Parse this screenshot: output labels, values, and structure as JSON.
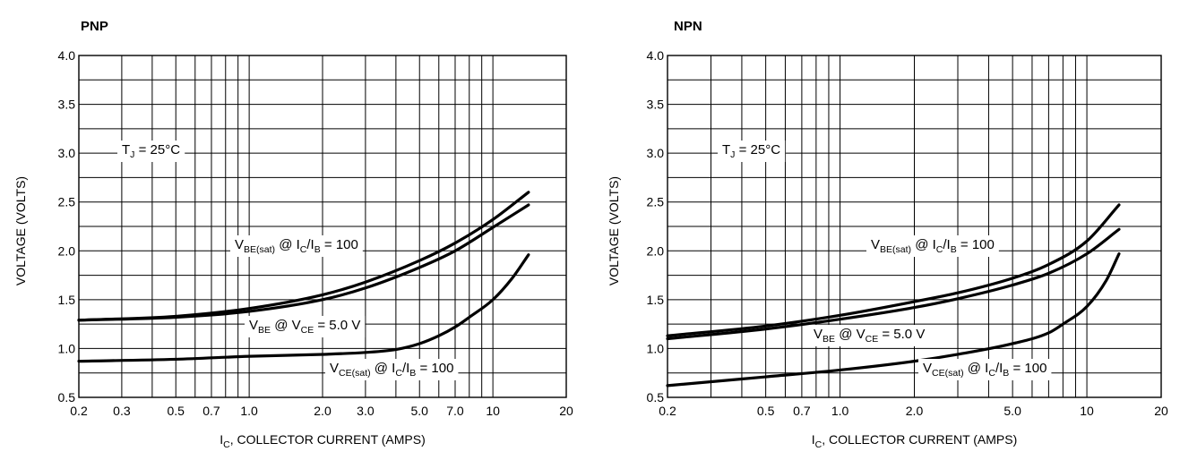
{
  "chart_data": [
    {
      "type": "line",
      "title": "PNP",
      "xlabel": "I_C, COLLECTOR CURRENT (AMPS)",
      "xlabel_parts": {
        "main": "I",
        "sub": "C",
        "rest": ", COLLECTOR CURRENT (AMPS)"
      },
      "ylabel": "VOLTAGE (VOLTS)",
      "xscale": "log",
      "xlim": [
        0.2,
        20
      ],
      "ylim": [
        0.5,
        4.0
      ],
      "grid": true,
      "x_ticks": [
        {
          "v": 0.2,
          "label": "0.2"
        },
        {
          "v": 0.3,
          "label": "0.3"
        },
        {
          "v": 0.5,
          "label": "0.5"
        },
        {
          "v": 0.7,
          "label": "0.7"
        },
        {
          "v": 1.0,
          "label": "1.0"
        },
        {
          "v": 2.0,
          "label": "2.0"
        },
        {
          "v": 3.0,
          "label": "3.0"
        },
        {
          "v": 5.0,
          "label": "5.0"
        },
        {
          "v": 7.0,
          "label": "7.0"
        },
        {
          "v": 10,
          "label": "10"
        },
        {
          "v": 20,
          "label": "20"
        }
      ],
      "x_grid": [
        0.2,
        0.3,
        0.4,
        0.5,
        0.6,
        0.7,
        0.8,
        0.9,
        1,
        2,
        3,
        4,
        5,
        6,
        7,
        8,
        9,
        10,
        20
      ],
      "y_ticks": [
        {
          "v": 0.5,
          "label": "0.5"
        },
        {
          "v": 1.0,
          "label": "1.0"
        },
        {
          "v": 1.5,
          "label": "1.5"
        },
        {
          "v": 2.0,
          "label": "2.0"
        },
        {
          "v": 2.5,
          "label": "2.5"
        },
        {
          "v": 3.0,
          "label": "3.0"
        },
        {
          "v": 3.5,
          "label": "3.5"
        },
        {
          "v": 4.0,
          "label": "4.0"
        }
      ],
      "y_grid_step": 0.25,
      "series": [
        {
          "name": "V_BE(sat) @ I_C/I_B = 100",
          "x": [
            0.2,
            0.5,
            1.0,
            2.0,
            3.0,
            5.0,
            7.0,
            10,
            14
          ],
          "y": [
            1.29,
            1.33,
            1.41,
            1.55,
            1.68,
            1.9,
            2.08,
            2.32,
            2.6
          ]
        },
        {
          "name": "V_BE @ V_CE = 5.0 V",
          "x": [
            0.2,
            0.5,
            1.0,
            2.0,
            3.0,
            5.0,
            7.0,
            10,
            14
          ],
          "y": [
            1.29,
            1.32,
            1.38,
            1.5,
            1.62,
            1.83,
            2.0,
            2.24,
            2.47
          ]
        },
        {
          "name": "V_CE(sat) @ I_C/I_B = 100",
          "x": [
            0.2,
            0.5,
            1.0,
            2.0,
            3.0,
            4.0,
            5.0,
            6.0,
            7.0,
            8.0,
            10,
            12,
            14
          ],
          "y": [
            0.87,
            0.89,
            0.92,
            0.94,
            0.96,
            0.99,
            1.05,
            1.13,
            1.22,
            1.32,
            1.5,
            1.72,
            1.96
          ]
        }
      ],
      "annotations": [
        {
          "id": "tj",
          "main": "T",
          "sub": "J",
          "rest": " = 25°C"
        },
        {
          "id": "vbesat",
          "main": "V",
          "sub": "BE(sat)",
          "mid": " @ I",
          "sub2": "C",
          "mid2": "/I",
          "sub3": "B",
          "rest": " = 100"
        },
        {
          "id": "vbe",
          "main": "V",
          "sub": "BE",
          "mid": " @ V",
          "sub2": "CE",
          "rest": " = 5.0 V"
        },
        {
          "id": "vcesat",
          "main": "V",
          "sub": "CE(sat)",
          "mid": " @ I",
          "sub2": "C",
          "mid2": "/I",
          "sub3": "B",
          "rest": " = 100"
        }
      ]
    },
    {
      "type": "line",
      "title": "NPN",
      "xlabel": "I_C, COLLECTOR CURRENT (AMPS)",
      "xlabel_parts": {
        "main": "I",
        "sub": "C",
        "rest": ", COLLECTOR CURRENT (AMPS)"
      },
      "ylabel": "VOLTAGE (VOLTS)",
      "xscale": "log",
      "xlim": [
        0.2,
        20
      ],
      "ylim": [
        0.5,
        4.0
      ],
      "grid": true,
      "x_ticks": [
        {
          "v": 0.2,
          "label": "0.2"
        },
        {
          "v": 0.5,
          "label": "0.5"
        },
        {
          "v": 0.7,
          "label": "0.7"
        },
        {
          "v": 1.0,
          "label": "1.0"
        },
        {
          "v": 2.0,
          "label": "2.0"
        },
        {
          "v": 5.0,
          "label": "5.0"
        },
        {
          "v": 10,
          "label": "10"
        },
        {
          "v": 20,
          "label": "20"
        }
      ],
      "x_grid": [
        0.2,
        0.3,
        0.4,
        0.5,
        0.6,
        0.7,
        0.8,
        0.9,
        1,
        2,
        3,
        4,
        5,
        6,
        7,
        8,
        9,
        10,
        20
      ],
      "y_ticks": [
        {
          "v": 0.5,
          "label": "0.5"
        },
        {
          "v": 1.0,
          "label": "1.0"
        },
        {
          "v": 1.5,
          "label": "1.5"
        },
        {
          "v": 2.0,
          "label": "2.0"
        },
        {
          "v": 2.5,
          "label": "2.5"
        },
        {
          "v": 3.0,
          "label": "3.0"
        },
        {
          "v": 3.5,
          "label": "3.5"
        },
        {
          "v": 4.0,
          "label": "4.0"
        }
      ],
      "y_grid_step": 0.25,
      "series": [
        {
          "name": "V_BE(sat) @ I_C/I_B = 100",
          "x": [
            0.2,
            0.5,
            1.0,
            2.0,
            3.0,
            5.0,
            7.0,
            10,
            13.5
          ],
          "y": [
            1.13,
            1.23,
            1.34,
            1.48,
            1.57,
            1.72,
            1.86,
            2.1,
            2.47
          ]
        },
        {
          "name": "V_BE @ V_CE = 5.0 V",
          "x": [
            0.2,
            0.5,
            1.0,
            2.0,
            3.0,
            5.0,
            7.0,
            10,
            13.5
          ],
          "y": [
            1.1,
            1.2,
            1.3,
            1.42,
            1.51,
            1.65,
            1.77,
            1.97,
            2.22
          ]
        },
        {
          "name": "V_CE(sat) @ I_C/I_B = 100",
          "x": [
            0.2,
            0.5,
            1.0,
            2.0,
            3.0,
            5.0,
            7.0,
            8.0,
            10,
            12,
            13.5
          ],
          "y": [
            0.62,
            0.71,
            0.78,
            0.87,
            0.94,
            1.05,
            1.16,
            1.25,
            1.43,
            1.7,
            1.97
          ]
        }
      ],
      "annotations": [
        {
          "id": "tj",
          "main": "T",
          "sub": "J",
          "rest": " = 25°C"
        },
        {
          "id": "vbesat",
          "main": "V",
          "sub": "BE(sat)",
          "mid": " @ I",
          "sub2": "C",
          "mid2": "/I",
          "sub3": "B",
          "rest": " = 100"
        },
        {
          "id": "vbe",
          "main": "V",
          "sub": "BE",
          "mid": " @ V",
          "sub2": "CE",
          "rest": " = 5.0 V"
        },
        {
          "id": "vcesat",
          "main": "V",
          "sub": "CE(sat)",
          "mid": " @ I",
          "sub2": "C",
          "mid2": "/I",
          "sub3": "B",
          "rest": " = 100"
        }
      ]
    }
  ]
}
